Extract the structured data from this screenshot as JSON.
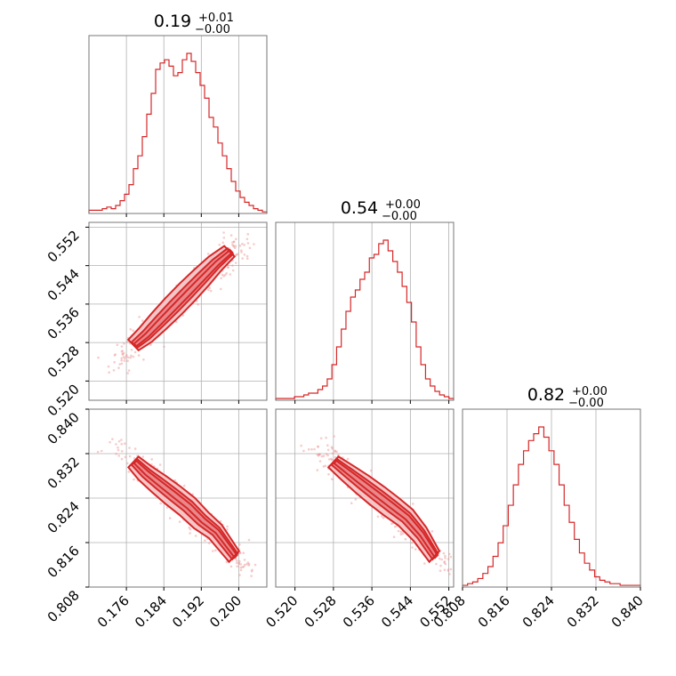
{
  "chart_data": {
    "type": "corner",
    "color": "#d62728",
    "parameters": [
      {
        "median": "0.19",
        "plus": "+0.01",
        "minus": "−0.00",
        "range": [
          0.168,
          0.206
        ],
        "ticks": [
          0.176,
          0.184,
          0.192,
          0.2
        ],
        "tick_labels": [
          "0.176",
          "0.184",
          "0.192",
          "0.200"
        ],
        "hist": [
          2,
          2,
          2,
          3,
          4,
          3,
          5,
          8,
          12,
          18,
          28,
          36,
          48,
          62,
          75,
          90,
          94,
          96,
          92,
          86,
          88,
          96,
          100,
          95,
          88,
          80,
          72,
          60,
          54,
          44,
          36,
          28,
          20,
          14,
          10,
          7,
          5,
          3,
          2,
          1
        ]
      },
      {
        "median": "0.54",
        "plus": "+0.00",
        "minus": "−0.00",
        "range": [
          0.516,
          0.553
        ],
        "ticks": [
          0.52,
          0.528,
          0.536,
          0.544,
          0.552
        ],
        "tick_labels": [
          "0.520",
          "0.528",
          "0.536",
          "0.544",
          "0.552"
        ],
        "hist": [
          1,
          1,
          1,
          1,
          2,
          2,
          3,
          4,
          4,
          6,
          8,
          12,
          20,
          30,
          40,
          50,
          58,
          62,
          68,
          72,
          80,
          82,
          88,
          90,
          84,
          78,
          72,
          64,
          55,
          44,
          30,
          20,
          12,
          8,
          5,
          3,
          2,
          1
        ]
      },
      {
        "median": "0.82",
        "plus": "+0.00",
        "minus": "−0.00",
        "range": [
          0.808,
          0.84
        ],
        "ticks": [
          0.808,
          0.816,
          0.824,
          0.832,
          0.84
        ],
        "tick_labels": [
          "0.808",
          "0.816",
          "0.824",
          "0.832",
          "0.840"
        ],
        "hist": [
          1,
          2,
          3,
          5,
          8,
          12,
          18,
          26,
          36,
          48,
          60,
          72,
          80,
          86,
          90,
          94,
          88,
          80,
          72,
          60,
          48,
          38,
          28,
          20,
          14,
          10,
          6,
          4,
          3,
          2,
          2,
          1,
          1,
          1,
          1
        ]
      }
    ],
    "pairs": [
      {
        "x": 0,
        "y": 1,
        "direction": "positive",
        "ridge": [
          [
            0.1775,
            0.5275
          ],
          [
            0.18,
            0.5295
          ],
          [
            0.183,
            0.5325
          ],
          [
            0.186,
            0.5355
          ],
          [
            0.189,
            0.5385
          ],
          [
            0.192,
            0.5415
          ],
          [
            0.195,
            0.5445
          ],
          [
            0.198,
            0.547
          ]
        ]
      },
      {
        "x": 0,
        "y": 2,
        "direction": "negative",
        "ridge": [
          [
            0.1775,
            0.8305
          ],
          [
            0.18,
            0.8285
          ],
          [
            0.183,
            0.8265
          ],
          [
            0.186,
            0.8245
          ],
          [
            0.189,
            0.8225
          ],
          [
            0.192,
            0.82
          ],
          [
            0.195,
            0.818
          ],
          [
            0.199,
            0.8135
          ]
        ]
      },
      {
        "x": 1,
        "y": 2,
        "direction": "negative",
        "ridge": [
          [
            0.528,
            0.8305
          ],
          [
            0.531,
            0.8285
          ],
          [
            0.534,
            0.8265
          ],
          [
            0.537,
            0.8245
          ],
          [
            0.54,
            0.8225
          ],
          [
            0.543,
            0.8205
          ],
          [
            0.546,
            0.8175
          ],
          [
            0.549,
            0.8135
          ]
        ]
      }
    ]
  }
}
